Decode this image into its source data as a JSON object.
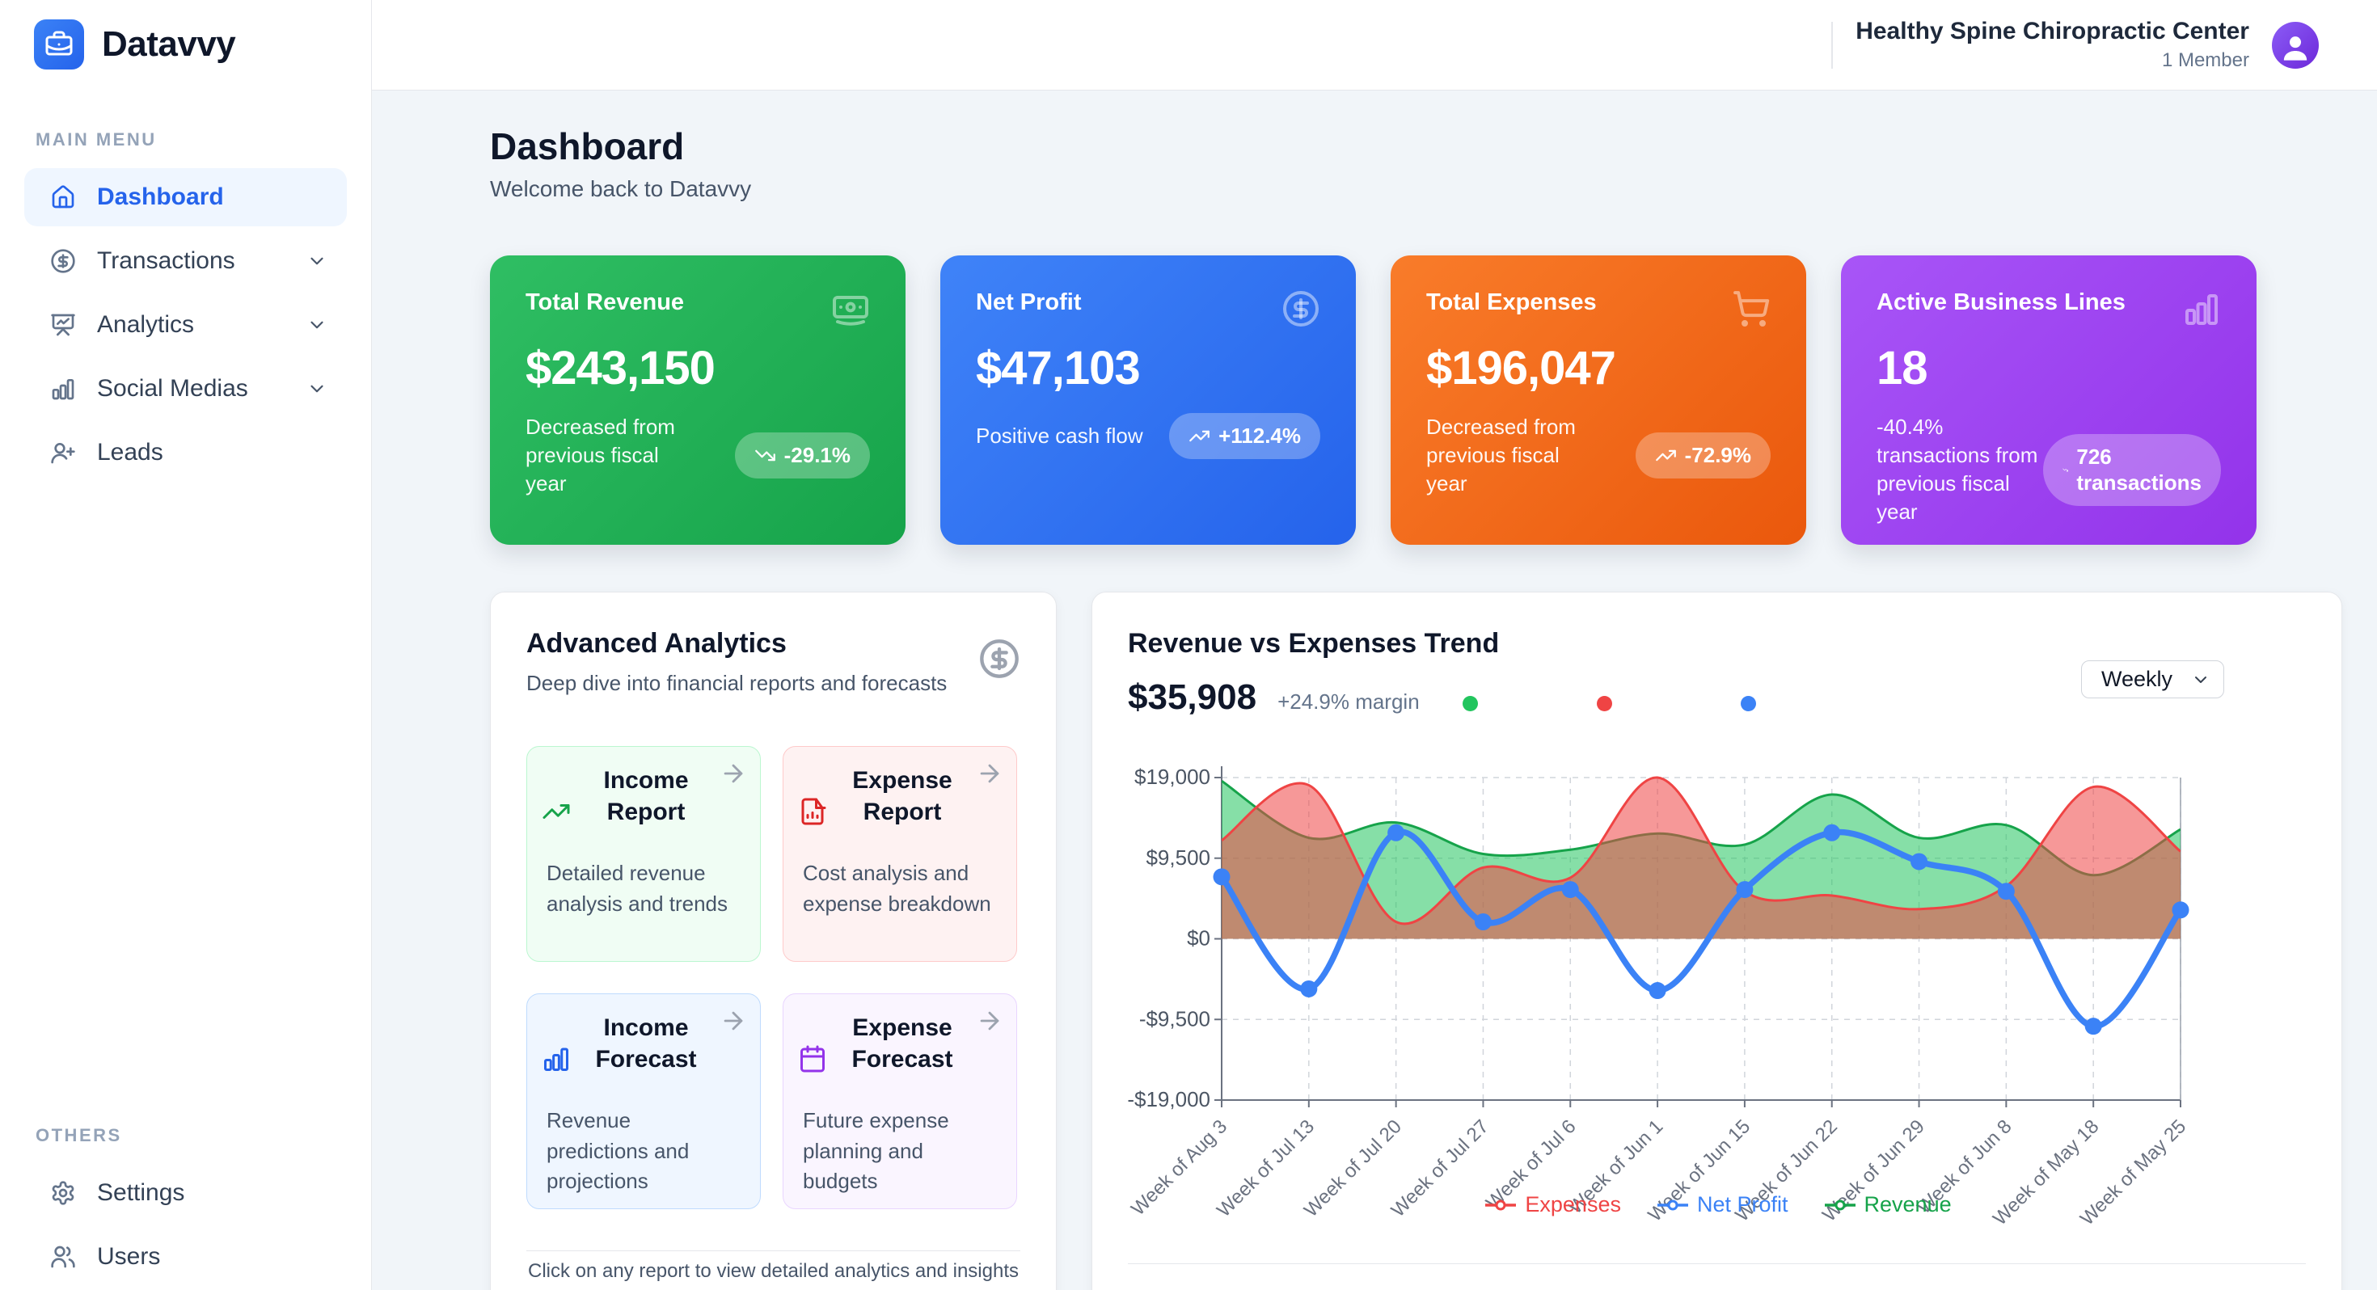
{
  "brand": {
    "name": "Datavvy",
    "logo_icon": "briefcase-icon",
    "accent_color": "#2563eb"
  },
  "sidebar": {
    "sections": [
      {
        "label": "MAIN MENU",
        "items": [
          {
            "label": "Dashboard",
            "icon": "home-icon",
            "active": true
          },
          {
            "label": "Transactions",
            "icon": "circle-dollar-icon",
            "expandable": true
          },
          {
            "label": "Analytics",
            "icon": "presentation-chart-icon",
            "expandable": true
          },
          {
            "label": "Social Medias",
            "icon": "bar-chart-icon",
            "expandable": true
          },
          {
            "label": "Leads",
            "icon": "user-plus-icon",
            "expandable": false
          }
        ]
      },
      {
        "label": "OTHERS",
        "items": [
          {
            "label": "Settings",
            "icon": "gear-icon"
          },
          {
            "label": "Users",
            "icon": "users-icon"
          }
        ]
      }
    ]
  },
  "header": {
    "company_name": "Healthy Spine Chiropractic Center",
    "company_meta": "1 Member",
    "avatar_icon": "user-avatar-icon"
  },
  "page": {
    "title": "Dashboard",
    "subtitle": "Welcome back to Datavvy"
  },
  "stat_cards": [
    {
      "label": "Total Revenue",
      "value": "$243,150",
      "note": "Decreased from previous fiscal year",
      "badge": "-29.1%",
      "badge_icon": "trending-down-icon",
      "icon": "banknote-icon",
      "color_from": "#2fbe63",
      "color_to": "#16a34a"
    },
    {
      "label": "Net Profit",
      "value": "$47,103",
      "note": "Positive cash flow",
      "badge": "+112.4%",
      "badge_icon": "trending-up-icon",
      "icon": "circle-dollar-icon",
      "color_from": "#3f83f8",
      "color_to": "#2563eb"
    },
    {
      "label": "Total Expenses",
      "value": "$196,047",
      "note": "Decreased from previous fiscal year",
      "badge": "-72.9%",
      "badge_icon": "trending-up-icon",
      "icon": "shopping-cart-icon",
      "color_from": "#f97c2a",
      "color_to": "#ea580c"
    },
    {
      "label": "Active Business Lines",
      "value": "18",
      "note": "-40.4% transactions from previous fiscal year",
      "badge": "726 transactions",
      "badge_icon": "trending-down-icon",
      "icon": "bar-chart-icon",
      "color_from": "#a855f7",
      "color_to": "#9333ea"
    }
  ],
  "analytics_panel": {
    "title": "Advanced Analytics",
    "subtitle": "Deep dive into financial reports and forecasts",
    "corner_icon": "circle-dollar-icon",
    "footer": "Click on any report to view detailed analytics and insights",
    "reports": [
      {
        "title": "Income Report",
        "desc": "Detailed revenue analysis and trends",
        "icon": "trending-up-icon",
        "accent": "#16a34a",
        "bg": "#f0fdf4",
        "border": "#bbf7d0"
      },
      {
        "title": "Expense Report",
        "desc": "Cost analysis and expense breakdown",
        "icon": "file-chart-icon",
        "accent": "#dc2626",
        "bg": "#fef2f2",
        "border": "#fecaca"
      },
      {
        "title": "Income Forecast",
        "desc": "Revenue predictions and projections",
        "icon": "bar-chart-icon",
        "accent": "#2563eb",
        "bg": "#eff6ff",
        "border": "#bfdbfe"
      },
      {
        "title": "Expense Forecast",
        "desc": "Future expense planning and budgets",
        "icon": "calendar-icon",
        "accent": "#9333ea",
        "bg": "#faf5ff",
        "border": "#e9d5ff"
      }
    ]
  },
  "chart_panel": {
    "title": "Revenue vs Expenses Trend",
    "value": "$35,908",
    "margin_note": "+24.9% margin",
    "dots": [
      "#22c55e",
      "#ef4444",
      "#3b82f6"
    ],
    "period": "Weekly"
  },
  "chart_data": {
    "type": "area",
    "title": "Revenue vs Expenses Trend",
    "x": [
      "Week of Aug 3",
      "Week of Jul 13",
      "Week of Jul 20",
      "Week of Jul 27",
      "Week of Jul 6",
      "Week of Jun 1",
      "Week of Jun 15",
      "Week of Jun 22",
      "Week of Jun 29",
      "Week of Jun 8",
      "Week of May 18",
      "Week of May 25"
    ],
    "series": [
      {
        "name": "Revenue",
        "kind": "area",
        "color": "#16a34a",
        "fill": "rgba(34,197,94,0.55)",
        "values": [
          18600,
          11900,
          13700,
          10000,
          10500,
          12400,
          11100,
          17000,
          11900,
          13400,
          7500,
          12900
        ]
      },
      {
        "name": "Expenses",
        "kind": "area",
        "color": "#ef4444",
        "fill": "rgba(239,68,68,0.55)",
        "values": [
          11600,
          18100,
          2000,
          8400,
          7200,
          19000,
          5600,
          5100,
          3500,
          6200,
          17900,
          10300
        ]
      },
      {
        "name": "Net Profit",
        "kind": "line",
        "color": "#3b82f6",
        "values": [
          7300,
          -5900,
          12500,
          2000,
          5800,
          -6100,
          5800,
          12500,
          9100,
          5600,
          -10300,
          3400
        ]
      }
    ],
    "ylim": [
      -19000,
      19000
    ],
    "yticks": [
      "$19,000",
      "$9,500",
      "$0",
      "-$9,500",
      "-$19,000"
    ],
    "ytick_values": [
      19000,
      9500,
      0,
      -9500,
      -19000
    ],
    "grid": true,
    "legend_position": "bottom",
    "legend": [
      {
        "label": "Expenses",
        "color": "#ef4444"
      },
      {
        "label": "Net Profit",
        "color": "#3b82f6"
      },
      {
        "label": "Revenue",
        "color": "#16a34a"
      }
    ]
  }
}
